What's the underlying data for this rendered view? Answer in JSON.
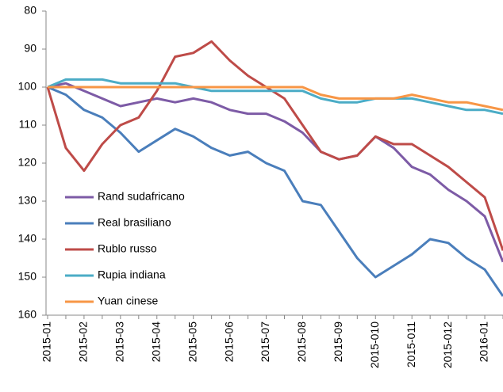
{
  "chart_data": {
    "type": "line",
    "categories": [
      "2015-01",
      null,
      "2015-02",
      null,
      "2015-03",
      null,
      "2015-04",
      null,
      "2015-05",
      null,
      "2015-06",
      null,
      "2015-07",
      null,
      "2015-08",
      null,
      "2015-09",
      null,
      "2015-010",
      null,
      "2015-011",
      null,
      "2015-012",
      null,
      "2016-01",
      null
    ],
    "series": [
      {
        "name": "Rand sudafricano",
        "color": "#7d5ba6",
        "values": [
          100,
          99,
          101,
          103,
          105,
          104,
          103,
          104,
          103,
          104,
          106,
          107,
          107,
          109,
          112,
          117,
          119,
          118,
          113,
          116,
          121,
          123,
          127,
          130,
          134,
          146
        ]
      },
      {
        "name": "Real brasiliano",
        "color": "#4a7ebb",
        "values": [
          100,
          102,
          106,
          108,
          112,
          117,
          114,
          111,
          113,
          116,
          118,
          117,
          120,
          122,
          130,
          131,
          138,
          145,
          150,
          147,
          144,
          140,
          141,
          145,
          148,
          155
        ]
      },
      {
        "name": "Rublo russo",
        "color": "#be4b48",
        "values": [
          100,
          116,
          122,
          115,
          110,
          108,
          101,
          92,
          91,
          88,
          93,
          97,
          100,
          103,
          110,
          117,
          119,
          118,
          113,
          115,
          115,
          118,
          121,
          125,
          129,
          143
        ]
      },
      {
        "name": "Rupia indiana",
        "color": "#4bacc6",
        "values": [
          100,
          98,
          98,
          98,
          99,
          99,
          99,
          99,
          100,
          101,
          101,
          101,
          101,
          101,
          101,
          103,
          104,
          104,
          103,
          103,
          103,
          104,
          105,
          106,
          106,
          107
        ]
      },
      {
        "name": "Yuan cinese",
        "color": "#f79646",
        "values": [
          100,
          100,
          100,
          100,
          100,
          100,
          100,
          100,
          100,
          100,
          100,
          100,
          100,
          100,
          100,
          102,
          103,
          103,
          103,
          103,
          102,
          103,
          104,
          104,
          105,
          106
        ]
      }
    ],
    "ylim": [
      80,
      160
    ],
    "yticks": [
      80,
      90,
      100,
      110,
      120,
      130,
      140,
      150,
      160
    ],
    "y_inverted": true
  }
}
